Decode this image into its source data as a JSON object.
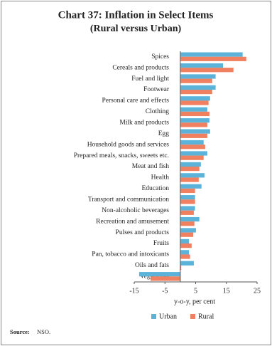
{
  "chart_data": {
    "type": "hbar",
    "title": "Chart 37: Inflation in Select Items",
    "subtitle": "(Rural versus Urban)",
    "x_label": "y-o-y, per cent",
    "source_label": "Source:",
    "source": "NSO.",
    "categories": [
      "Spices",
      "Cereals and products",
      "Fuel and light",
      "Footwear",
      "Personal care and effects",
      "Clothing",
      "Milk and products",
      "Egg",
      "Household goods and services",
      "Prepared meals, snacks, sweets etc.",
      "Meat and fish",
      "Health",
      "Education",
      "Transport and communication",
      "Non-alcoholic beverages",
      "Recreation and amusement",
      "Pulses and products",
      "Fruits",
      "Pan, tobacco and intoxicants",
      "Oils and fats",
      "Vegetables"
    ],
    "series": [
      {
        "name": "Urban",
        "color": "#5bb3d9",
        "values": [
          20.3,
          13.9,
          11.5,
          11.5,
          9.7,
          8.8,
          9.5,
          9.7,
          7.6,
          8.8,
          6.7,
          7.9,
          6.9,
          4.8,
          4.8,
          6.2,
          5.1,
          2.8,
          2.8,
          4.4,
          -13.4
        ]
      },
      {
        "name": "Rural",
        "color": "#f08060",
        "values": [
          21.5,
          17.3,
          10.4,
          10.4,
          9.2,
          9.5,
          8.8,
          8.8,
          8.1,
          7.6,
          6.2,
          6.0,
          4.8,
          4.8,
          4.4,
          4.6,
          4.2,
          3.7,
          3.2,
          0.3,
          -9.7
        ]
      }
    ],
    "xlim": [
      -15,
      25
    ],
    "xticks": [
      -15,
      -5,
      5,
      15,
      25
    ]
  }
}
